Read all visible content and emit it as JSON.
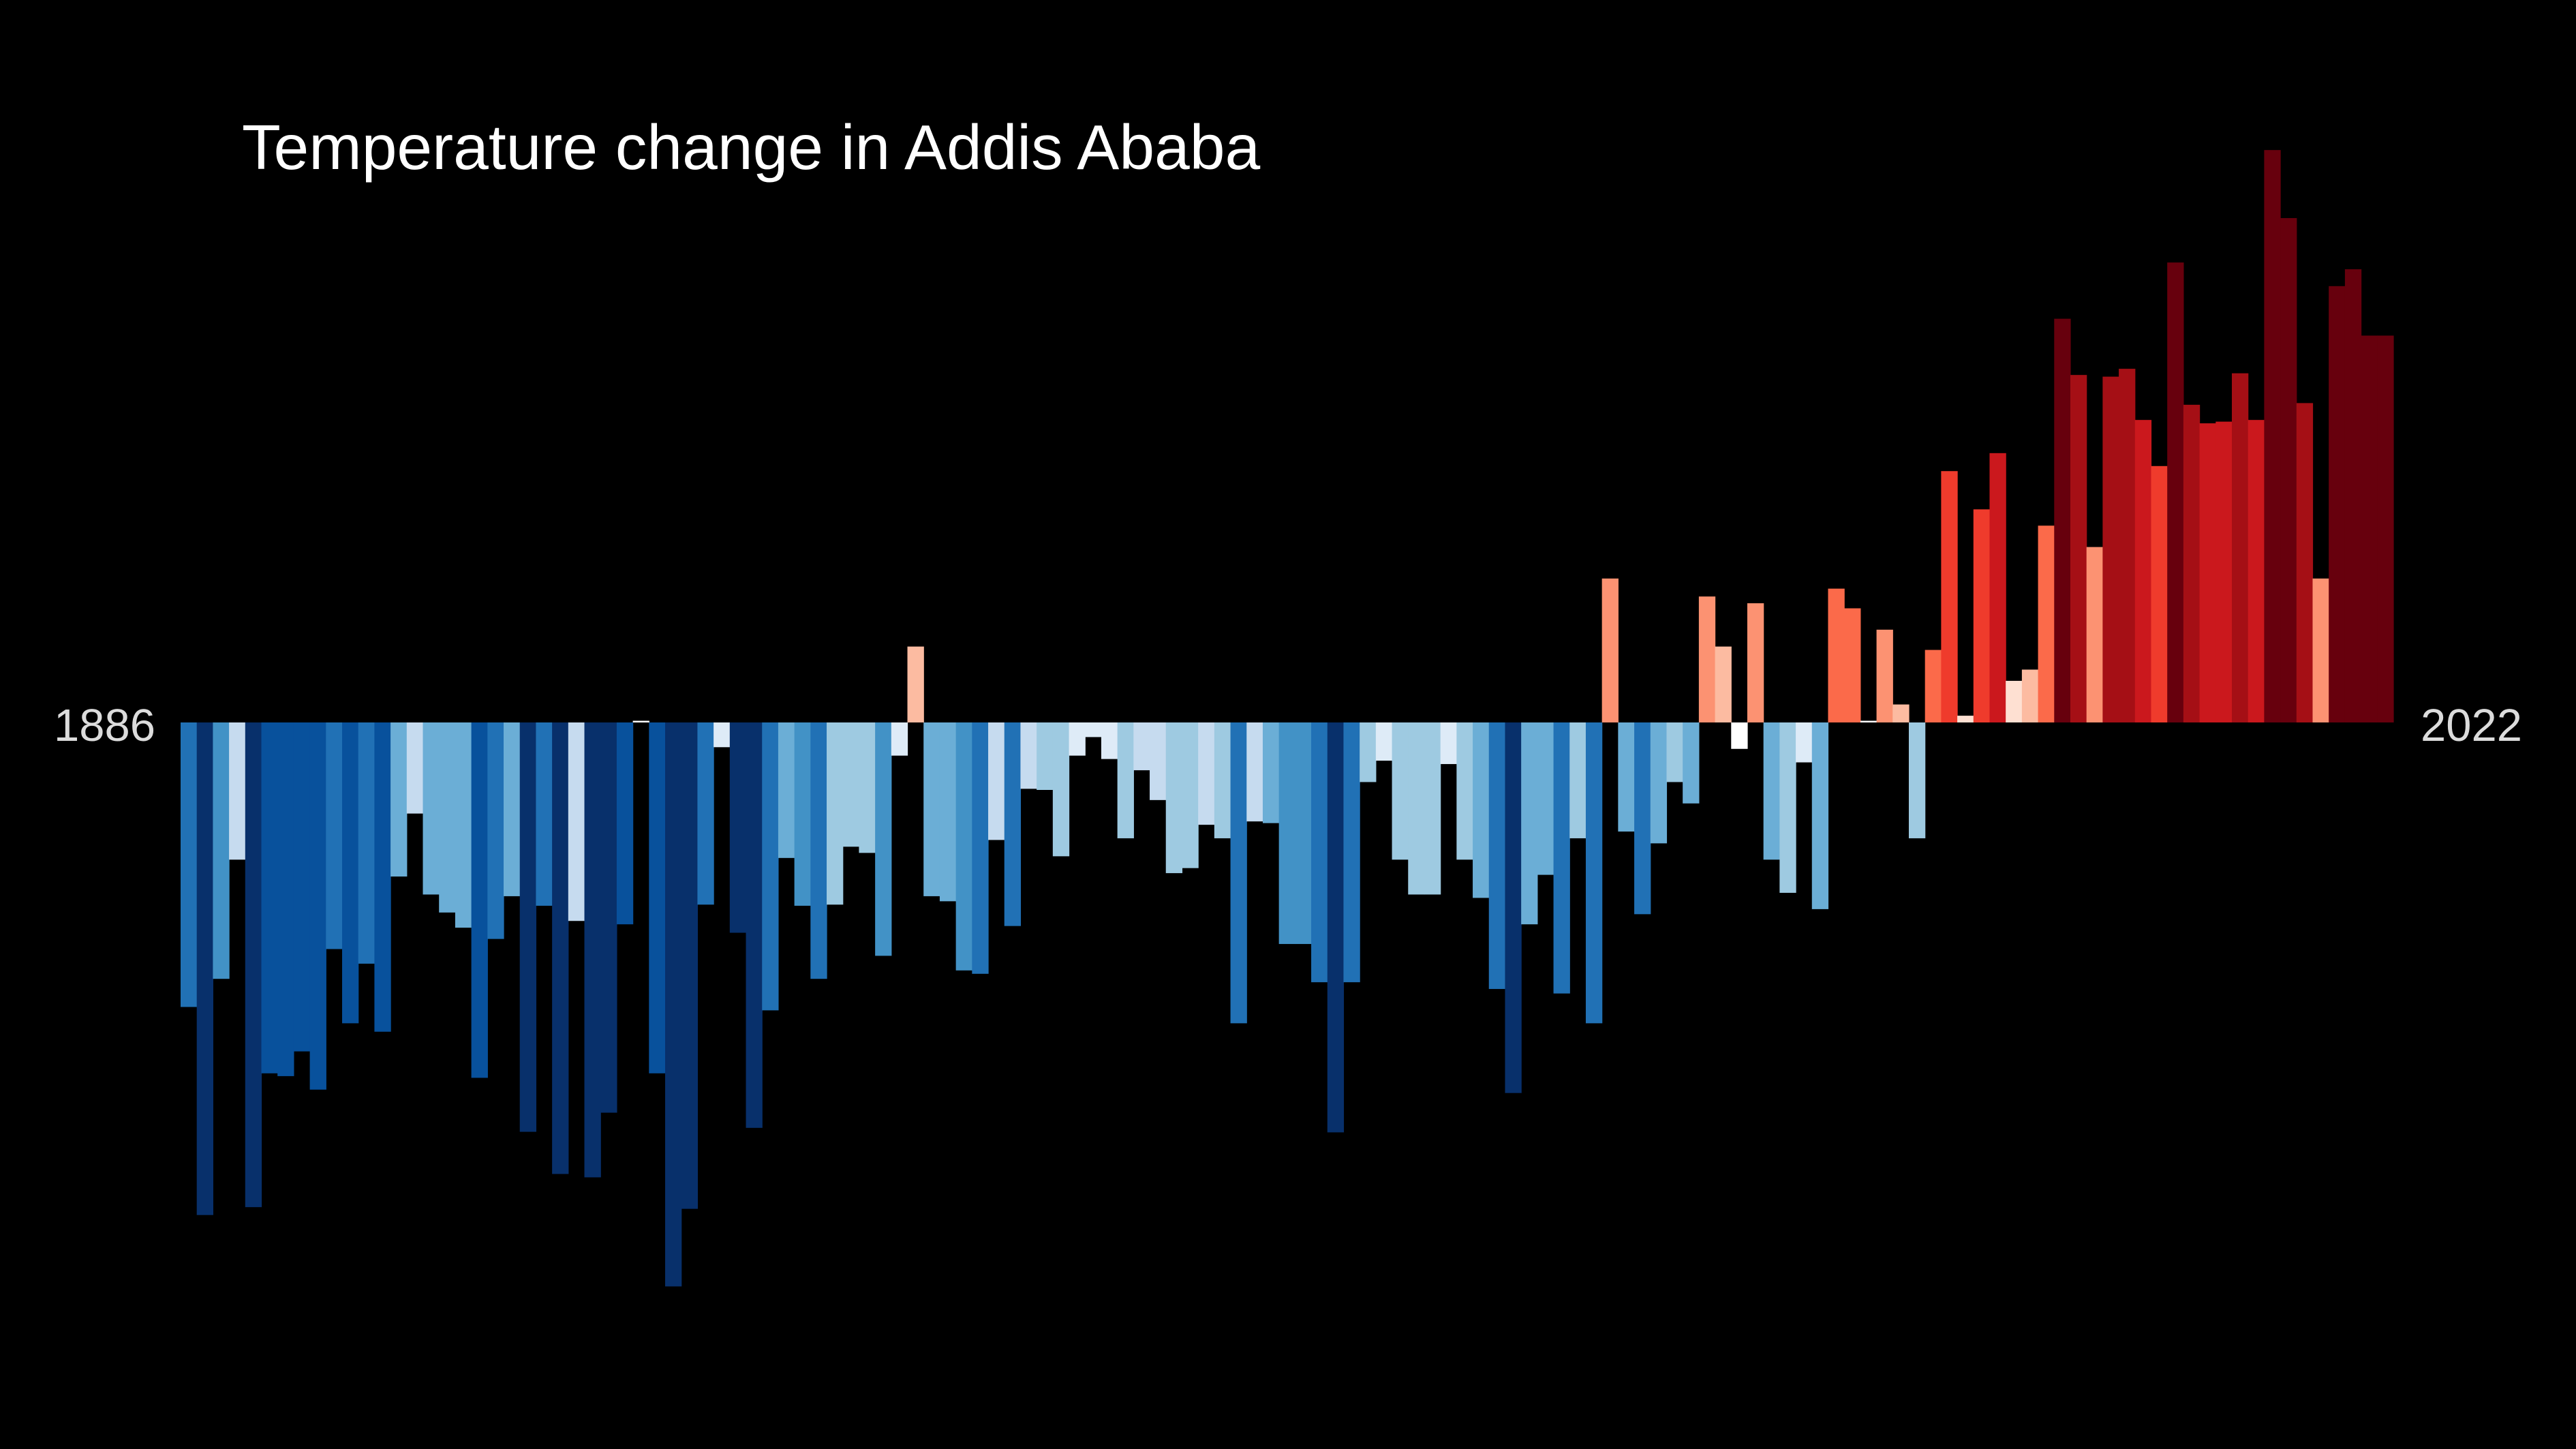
{
  "chart_data": {
    "type": "bar",
    "title": "Temperature change in Addis Ababa",
    "xlabel": "",
    "ylabel": "",
    "start_label": "1886",
    "end_label": "2022",
    "x": [
      1886,
      1887,
      1888,
      1889,
      1890,
      1891,
      1892,
      1893,
      1894,
      1895,
      1896,
      1897,
      1898,
      1899,
      1900,
      1901,
      1902,
      1903,
      1904,
      1905,
      1906,
      1907,
      1908,
      1909,
      1910,
      1911,
      1912,
      1913,
      1914,
      1915,
      1916,
      1917,
      1918,
      1919,
      1920,
      1921,
      1922,
      1923,
      1924,
      1925,
      1926,
      1927,
      1928,
      1929,
      1930,
      1931,
      1932,
      1933,
      1934,
      1935,
      1936,
      1937,
      1938,
      1939,
      1940,
      1941,
      1942,
      1943,
      1944,
      1945,
      1946,
      1947,
      1948,
      1949,
      1950,
      1951,
      1952,
      1953,
      1954,
      1955,
      1956,
      1957,
      1958,
      1959,
      1960,
      1961,
      1962,
      1963,
      1964,
      1965,
      1966,
      1967,
      1968,
      1969,
      1970,
      1971,
      1972,
      1973,
      1974,
      1975,
      1976,
      1977,
      1978,
      1979,
      1980,
      1981,
      1982,
      1983,
      1984,
      1985,
      1986,
      1987,
      1988,
      1989,
      1990,
      1991,
      1992,
      1993,
      1994,
      1995,
      1996,
      1997,
      1998,
      1999,
      2000,
      2001,
      2002,
      2003,
      2004,
      2005,
      2006,
      2007,
      2008,
      2009,
      2010,
      2011,
      2012,
      2013,
      2014,
      2015,
      2016,
      2017,
      2018,
      2019,
      2020,
      2021,
      2022
    ],
    "values": [
      -0.506,
      -0.876,
      -0.456,
      -0.244,
      -0.862,
      -0.624,
      -0.629,
      -0.585,
      -0.653,
      -0.403,
      -0.535,
      -0.429,
      -0.55,
      -0.274,
      -0.162,
      -0.306,
      -0.338,
      -0.365,
      -0.632,
      -0.385,
      -0.309,
      -0.728,
      -0.326,
      -0.803,
      -0.353,
      -0.809,
      -0.694,
      -0.359,
      0.003,
      -0.624,
      -1.003,
      -0.865,
      -0.324,
      -0.044,
      -0.374,
      -0.721,
      -0.512,
      -0.241,
      -0.326,
      -0.456,
      -0.324,
      -0.221,
      -0.232,
      -0.415,
      -0.059,
      0.135,
      -0.309,
      -0.318,
      -0.441,
      -0.447,
      -0.209,
      -0.362,
      -0.118,
      -0.12,
      -0.238,
      -0.059,
      -0.026,
      -0.065,
      -0.206,
      -0.085,
      -0.138,
      -0.268,
      -0.259,
      -0.182,
      -0.206,
      -0.535,
      -0.176,
      -0.179,
      -0.394,
      -0.394,
      -0.462,
      -0.729,
      -0.462,
      -0.106,
      -0.068,
      -0.244,
      -0.306,
      -0.306,
      -0.074,
      -0.244,
      -0.312,
      -0.474,
      -0.659,
      -0.359,
      -0.271,
      -0.482,
      -0.206,
      -0.535,
      0.256,
      -0.194,
      -0.341,
      -0.215,
      -0.106,
      -0.144,
      0.224,
      0.135,
      -0.047,
      0.212,
      -0.244,
      -0.303,
      -0.071,
      -0.332,
      0.238,
      0.203,
      0.003,
      0.165,
      0.032,
      -0.206,
      0.129,
      0.447,
      0.012,
      0.379,
      0.479,
      0.074,
      0.094,
      0.35,
      0.718,
      0.618,
      0.312,
      0.615,
      0.629,
      0.538,
      0.456,
      0.818,
      0.565,
      0.532,
      0.535,
      0.621,
      0.538,
      1.018,
      0.897,
      0.568,
      0.256,
      0.776,
      0.806,
      0.688,
      0.688
    ],
    "bar_colors": [
      "#2171b5",
      "#08306b",
      "#4292c6",
      "#c6dbef",
      "#08306b",
      "#08519c",
      "#08519c",
      "#08519c",
      "#08519c",
      "#2171b5",
      "#08519c",
      "#2171b5",
      "#08519c",
      "#6baed6",
      "#c6dbef",
      "#6baed6",
      "#6baed6",
      "#6baed6",
      "#08519c",
      "#2171b5",
      "#6baed6",
      "#08306b",
      "#2171b5",
      "#08306b",
      "#c6dbef",
      "#08306b",
      "#08306b",
      "#08519c",
      "#ffffff",
      "#08519c",
      "#08306b",
      "#08306b",
      "#2171b5",
      "#deebf7",
      "#08306b",
      "#08306b",
      "#2171b5",
      "#6baed6",
      "#4292c6",
      "#2171b5",
      "#9ecae1",
      "#9ecae1",
      "#9ecae1",
      "#4292c6",
      "#deebf7",
      "#fcbba1",
      "#6baed6",
      "#6baed6",
      "#4292c6",
      "#2171b5",
      "#c6dbef",
      "#2171b5",
      "#c6dbef",
      "#9ecae1",
      "#9ecae1",
      "#deebf7",
      "#deebf7",
      "#deebf7",
      "#9ecae1",
      "#c6dbef",
      "#c6dbef",
      "#9ecae1",
      "#9ecae1",
      "#c6dbef",
      "#9ecae1",
      "#2171b5",
      "#c6dbef",
      "#6baed6",
      "#4292c6",
      "#4292c6",
      "#2171b5",
      "#08306b",
      "#2171b5",
      "#9ecae1",
      "#deebf7",
      "#9ecae1",
      "#9ecae1",
      "#9ecae1",
      "#deebf7",
      "#9ecae1",
      "#6baed6",
      "#2171b5",
      "#08306b",
      "#6baed6",
      "#6baed6",
      "#2171b5",
      "#9ecae1",
      "#2171b5",
      "#fc9272",
      "#6baed6",
      "#2171b5",
      "#6baed6",
      "#9ecae1",
      "#6baed6",
      "#fc9272",
      "#fcbba1",
      "#ffffff",
      "#fc9272",
      "#6baed6",
      "#9ecae1",
      "#deebf7",
      "#6baed6",
      "#fb6a4a",
      "#fb6a4a",
      "#ffffff",
      "#fc9272",
      "#fcbba1",
      "#9ecae1",
      "#fb6a4a",
      "#ef3b2c",
      "#fee0d2",
      "#ef3b2c",
      "#cb181d",
      "#fee0d2",
      "#fcbba1",
      "#fb6a4a",
      "#67000d",
      "#a50f15",
      "#fc9272",
      "#a50f15",
      "#a50f15",
      "#cb181d",
      "#ef3b2c",
      "#67000d",
      "#a50f15",
      "#cb181d",
      "#cb181d",
      "#a50f15",
      "#cb181d",
      "#67000d",
      "#67000d",
      "#a50f15",
      "#fc9272",
      "#67000d",
      "#67000d",
      "#67000d",
      "#67000d"
    ],
    "ylim": [
      -1.3,
      1.3
    ],
    "background_color": "#000000",
    "grid": false,
    "legend": "none"
  }
}
